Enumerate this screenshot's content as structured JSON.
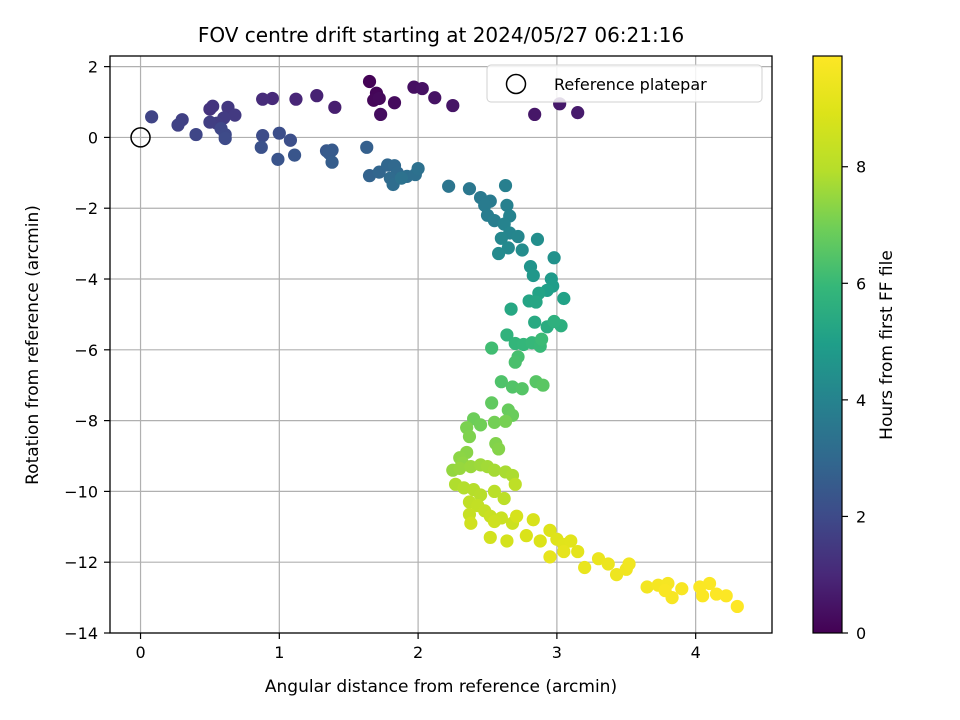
{
  "chart_data": {
    "type": "scatter",
    "title": "FOV centre drift starting at 2024/05/27 06:21:16",
    "xlabel": "Angular distance from reference (arcmin)",
    "ylabel": "Rotation from reference (arcmin)",
    "xlim": [
      -0.22,
      4.55
    ],
    "ylim": [
      -14,
      2.3
    ],
    "x_ticks": [
      0,
      1,
      2,
      3,
      4
    ],
    "x_tick_labels": [
      "0",
      "1",
      "2",
      "3",
      "4"
    ],
    "y_ticks": [
      2,
      0,
      -2,
      -4,
      -6,
      -8,
      -10,
      -12,
      -14
    ],
    "y_tick_labels": [
      "2",
      "0",
      "−2",
      "−4",
      "−6",
      "−8",
      "−10",
      "−12",
      "−14"
    ],
    "grid": true,
    "legend": {
      "placement": "top-right",
      "entries": [
        {
          "label": "Reference platepar",
          "marker": "open-circle"
        }
      ]
    },
    "reference_point": {
      "x": 0,
      "y": 0
    },
    "colorbar": {
      "label": "Hours from first FF file",
      "colormap": "viridis",
      "range": [
        0,
        9.9
      ],
      "ticks": [
        0,
        2,
        4,
        6,
        8
      ],
      "tick_labels": [
        "0",
        "2",
        "4",
        "6",
        "8"
      ]
    },
    "points": [
      {
        "x": 1.65,
        "y": 1.58,
        "h": 0.05
      },
      {
        "x": 1.7,
        "y": 1.25,
        "h": 0.1
      },
      {
        "x": 1.68,
        "y": 1.05,
        "h": 0.15
      },
      {
        "x": 1.72,
        "y": 1.1,
        "h": 0.2
      },
      {
        "x": 1.83,
        "y": 0.98,
        "h": 0.25
      },
      {
        "x": 1.73,
        "y": 0.65,
        "h": 0.3
      },
      {
        "x": 1.97,
        "y": 1.42,
        "h": 0.35
      },
      {
        "x": 2.03,
        "y": 1.38,
        "h": 0.4
      },
      {
        "x": 2.12,
        "y": 1.12,
        "h": 0.45
      },
      {
        "x": 2.25,
        "y": 0.9,
        "h": 0.5
      },
      {
        "x": 2.84,
        "y": 0.65,
        "h": 0.55
      },
      {
        "x": 3.02,
        "y": 0.95,
        "h": 0.6
      },
      {
        "x": 3.15,
        "y": 0.7,
        "h": 0.65
      },
      {
        "x": 1.4,
        "y": 0.85,
        "h": 0.75
      },
      {
        "x": 1.27,
        "y": 1.18,
        "h": 0.85
      },
      {
        "x": 1.12,
        "y": 1.08,
        "h": 0.95
      },
      {
        "x": 0.95,
        "y": 1.1,
        "h": 1.05
      },
      {
        "x": 0.88,
        "y": 1.08,
        "h": 1.1
      },
      {
        "x": 0.5,
        "y": 0.8,
        "h": 1.3
      },
      {
        "x": 0.52,
        "y": 0.88,
        "h": 1.35
      },
      {
        "x": 0.63,
        "y": 0.85,
        "h": 1.45
      },
      {
        "x": 0.68,
        "y": 0.63,
        "h": 1.5
      },
      {
        "x": 0.6,
        "y": 0.55,
        "h": 1.55
      },
      {
        "x": 0.55,
        "y": 0.4,
        "h": 1.6
      },
      {
        "x": 0.5,
        "y": 0.43,
        "h": 1.65
      },
      {
        "x": 0.3,
        "y": 0.5,
        "h": 1.7
      },
      {
        "x": 0.27,
        "y": 0.35,
        "h": 1.75
      },
      {
        "x": 0.08,
        "y": 0.58,
        "h": 1.8
      },
      {
        "x": 0.4,
        "y": 0.08,
        "h": 1.85
      },
      {
        "x": 0.58,
        "y": 0.25,
        "h": 1.9
      },
      {
        "x": 0.61,
        "y": 0.08,
        "h": 1.95
      },
      {
        "x": 0.61,
        "y": -0.03,
        "h": 2.0
      },
      {
        "x": 0.88,
        "y": 0.05,
        "h": 2.05
      },
      {
        "x": 1.0,
        "y": 0.12,
        "h": 2.1
      },
      {
        "x": 1.08,
        "y": -0.08,
        "h": 2.15
      },
      {
        "x": 0.87,
        "y": -0.28,
        "h": 2.2
      },
      {
        "x": 0.99,
        "y": -0.62,
        "h": 2.3
      },
      {
        "x": 1.11,
        "y": -0.5,
        "h": 2.35
      },
      {
        "x": 1.34,
        "y": -0.38,
        "h": 2.45
      },
      {
        "x": 1.38,
        "y": -0.36,
        "h": 2.5
      },
      {
        "x": 1.36,
        "y": -0.45,
        "h": 2.55
      },
      {
        "x": 1.38,
        "y": -0.7,
        "h": 2.6
      },
      {
        "x": 1.63,
        "y": -0.28,
        "h": 2.7
      },
      {
        "x": 1.65,
        "y": -1.08,
        "h": 2.8
      },
      {
        "x": 1.72,
        "y": -0.98,
        "h": 2.9
      },
      {
        "x": 1.78,
        "y": -0.78,
        "h": 2.95
      },
      {
        "x": 1.83,
        "y": -0.8,
        "h": 3.0
      },
      {
        "x": 1.85,
        "y": -1.0,
        "h": 3.05
      },
      {
        "x": 1.8,
        "y": -1.15,
        "h": 3.1
      },
      {
        "x": 1.82,
        "y": -1.33,
        "h": 3.15
      },
      {
        "x": 1.92,
        "y": -1.1,
        "h": 3.2
      },
      {
        "x": 1.98,
        "y": -1.05,
        "h": 3.25
      },
      {
        "x": 2.0,
        "y": -0.88,
        "h": 3.3
      },
      {
        "x": 1.88,
        "y": -1.15,
        "h": 3.35
      },
      {
        "x": 2.22,
        "y": -1.38,
        "h": 3.45
      },
      {
        "x": 2.37,
        "y": -1.45,
        "h": 3.55
      },
      {
        "x": 2.45,
        "y": -1.7,
        "h": 3.6
      },
      {
        "x": 2.52,
        "y": -1.8,
        "h": 3.65
      },
      {
        "x": 2.48,
        "y": -1.92,
        "h": 3.7
      },
      {
        "x": 2.5,
        "y": -2.2,
        "h": 3.75
      },
      {
        "x": 2.55,
        "y": -2.35,
        "h": 3.8
      },
      {
        "x": 2.63,
        "y": -1.36,
        "h": 3.85
      },
      {
        "x": 2.64,
        "y": -1.92,
        "h": 3.9
      },
      {
        "x": 2.66,
        "y": -2.22,
        "h": 3.95
      },
      {
        "x": 2.62,
        "y": -2.45,
        "h": 4.0
      },
      {
        "x": 2.66,
        "y": -2.7,
        "h": 4.05
      },
      {
        "x": 2.72,
        "y": -2.8,
        "h": 4.1
      },
      {
        "x": 2.6,
        "y": -2.85,
        "h": 4.15
      },
      {
        "x": 2.65,
        "y": -3.12,
        "h": 4.2
      },
      {
        "x": 2.58,
        "y": -3.28,
        "h": 4.25
      },
      {
        "x": 2.75,
        "y": -3.18,
        "h": 4.3
      },
      {
        "x": 2.86,
        "y": -2.88,
        "h": 4.4
      },
      {
        "x": 2.98,
        "y": -3.4,
        "h": 4.5
      },
      {
        "x": 2.81,
        "y": -3.65,
        "h": 4.6
      },
      {
        "x": 2.83,
        "y": -3.9,
        "h": 4.7
      },
      {
        "x": 2.96,
        "y": -4.0,
        "h": 4.8
      },
      {
        "x": 2.97,
        "y": -4.2,
        "h": 4.9
      },
      {
        "x": 2.93,
        "y": -4.32,
        "h": 5.0
      },
      {
        "x": 3.05,
        "y": -4.55,
        "h": 5.1
      },
      {
        "x": 2.87,
        "y": -4.4,
        "h": 5.15
      },
      {
        "x": 2.8,
        "y": -4.62,
        "h": 5.2
      },
      {
        "x": 2.85,
        "y": -4.65,
        "h": 5.25
      },
      {
        "x": 2.67,
        "y": -4.85,
        "h": 5.3
      },
      {
        "x": 2.84,
        "y": -5.22,
        "h": 5.4
      },
      {
        "x": 2.93,
        "y": -5.35,
        "h": 5.5
      },
      {
        "x": 3.03,
        "y": -5.32,
        "h": 5.6
      },
      {
        "x": 2.98,
        "y": -5.2,
        "h": 5.65
      },
      {
        "x": 2.64,
        "y": -5.58,
        "h": 5.75
      },
      {
        "x": 2.7,
        "y": -5.82,
        "h": 5.85
      },
      {
        "x": 2.76,
        "y": -5.85,
        "h": 5.9
      },
      {
        "x": 2.82,
        "y": -5.8,
        "h": 5.95
      },
      {
        "x": 2.88,
        "y": -5.9,
        "h": 6.0
      },
      {
        "x": 2.89,
        "y": -5.7,
        "h": 6.05
      },
      {
        "x": 2.53,
        "y": -5.95,
        "h": 6.15
      },
      {
        "x": 2.72,
        "y": -6.2,
        "h": 6.25
      },
      {
        "x": 2.7,
        "y": -6.35,
        "h": 6.3
      },
      {
        "x": 2.6,
        "y": -6.9,
        "h": 6.4
      },
      {
        "x": 2.68,
        "y": -7.05,
        "h": 6.45
      },
      {
        "x": 2.75,
        "y": -7.1,
        "h": 6.5
      },
      {
        "x": 2.85,
        "y": -6.9,
        "h": 6.55
      },
      {
        "x": 2.9,
        "y": -7.0,
        "h": 6.6
      },
      {
        "x": 2.53,
        "y": -7.5,
        "h": 6.7
      },
      {
        "x": 2.65,
        "y": -7.7,
        "h": 6.8
      },
      {
        "x": 2.68,
        "y": -7.85,
        "h": 6.85
      },
      {
        "x": 2.4,
        "y": -7.95,
        "h": 6.9
      },
      {
        "x": 2.45,
        "y": -8.12,
        "h": 6.95
      },
      {
        "x": 2.55,
        "y": -8.05,
        "h": 7.0
      },
      {
        "x": 2.63,
        "y": -8.02,
        "h": 7.05
      },
      {
        "x": 2.35,
        "y": -8.2,
        "h": 7.1
      },
      {
        "x": 2.37,
        "y": -8.45,
        "h": 7.15
      },
      {
        "x": 2.56,
        "y": -8.65,
        "h": 7.2
      },
      {
        "x": 2.58,
        "y": -8.8,
        "h": 7.25
      },
      {
        "x": 2.35,
        "y": -8.9,
        "h": 7.3
      },
      {
        "x": 2.3,
        "y": -9.05,
        "h": 7.35
      },
      {
        "x": 2.32,
        "y": -9.2,
        "h": 7.4
      },
      {
        "x": 2.25,
        "y": -9.4,
        "h": 7.45
      },
      {
        "x": 2.3,
        "y": -9.35,
        "h": 7.5
      },
      {
        "x": 2.38,
        "y": -9.3,
        "h": 7.55
      },
      {
        "x": 2.45,
        "y": -9.25,
        "h": 7.6
      },
      {
        "x": 2.5,
        "y": -9.3,
        "h": 7.65
      },
      {
        "x": 2.55,
        "y": -9.4,
        "h": 7.7
      },
      {
        "x": 2.63,
        "y": -9.45,
        "h": 7.75
      },
      {
        "x": 2.68,
        "y": -9.55,
        "h": 7.8
      },
      {
        "x": 2.27,
        "y": -9.8,
        "h": 7.85
      },
      {
        "x": 2.33,
        "y": -9.9,
        "h": 7.9
      },
      {
        "x": 2.4,
        "y": -9.95,
        "h": 7.95
      },
      {
        "x": 2.45,
        "y": -10.1,
        "h": 8.0
      },
      {
        "x": 2.55,
        "y": -10.0,
        "h": 8.05
      },
      {
        "x": 2.62,
        "y": -10.2,
        "h": 8.1
      },
      {
        "x": 2.7,
        "y": -9.8,
        "h": 8.15
      },
      {
        "x": 2.37,
        "y": -10.3,
        "h": 8.2
      },
      {
        "x": 2.43,
        "y": -10.4,
        "h": 8.25
      },
      {
        "x": 2.48,
        "y": -10.55,
        "h": 8.3
      },
      {
        "x": 2.37,
        "y": -10.65,
        "h": 8.35
      },
      {
        "x": 2.52,
        "y": -10.7,
        "h": 8.4
      },
      {
        "x": 2.6,
        "y": -10.75,
        "h": 8.45
      },
      {
        "x": 2.68,
        "y": -10.9,
        "h": 8.5
      },
      {
        "x": 2.55,
        "y": -10.85,
        "h": 8.55
      },
      {
        "x": 2.38,
        "y": -10.9,
        "h": 8.6
      },
      {
        "x": 2.52,
        "y": -11.3,
        "h": 8.65
      },
      {
        "x": 2.64,
        "y": -11.4,
        "h": 8.7
      },
      {
        "x": 2.71,
        "y": -10.7,
        "h": 8.75
      },
      {
        "x": 2.83,
        "y": -10.8,
        "h": 8.8
      },
      {
        "x": 2.78,
        "y": -11.25,
        "h": 8.85
      },
      {
        "x": 2.88,
        "y": -11.4,
        "h": 8.9
      },
      {
        "x": 2.95,
        "y": -11.1,
        "h": 8.95
      },
      {
        "x": 3.0,
        "y": -11.35,
        "h": 9.0
      },
      {
        "x": 3.05,
        "y": -11.5,
        "h": 9.05
      },
      {
        "x": 3.1,
        "y": -11.4,
        "h": 9.1
      },
      {
        "x": 3.15,
        "y": -11.7,
        "h": 9.15
      },
      {
        "x": 3.05,
        "y": -11.7,
        "h": 9.2
      },
      {
        "x": 2.95,
        "y": -11.85,
        "h": 9.25
      },
      {
        "x": 3.2,
        "y": -12.15,
        "h": 9.3
      },
      {
        "x": 3.3,
        "y": -11.9,
        "h": 9.35
      },
      {
        "x": 3.37,
        "y": -12.05,
        "h": 9.4
      },
      {
        "x": 3.43,
        "y": -12.35,
        "h": 9.45
      },
      {
        "x": 3.5,
        "y": -12.2,
        "h": 9.5
      },
      {
        "x": 3.52,
        "y": -12.05,
        "h": 9.55
      },
      {
        "x": 3.65,
        "y": -12.7,
        "h": 9.6
      },
      {
        "x": 3.73,
        "y": -12.65,
        "h": 9.65
      },
      {
        "x": 3.8,
        "y": -12.6,
        "h": 9.7
      },
      {
        "x": 3.83,
        "y": -13.0,
        "h": 9.72
      },
      {
        "x": 3.9,
        "y": -12.75,
        "h": 9.75
      },
      {
        "x": 3.78,
        "y": -12.8,
        "h": 9.77
      },
      {
        "x": 4.03,
        "y": -12.7,
        "h": 9.8
      },
      {
        "x": 4.1,
        "y": -12.6,
        "h": 9.82
      },
      {
        "x": 4.05,
        "y": -12.95,
        "h": 9.84
      },
      {
        "x": 4.15,
        "y": -12.9,
        "h": 9.86
      },
      {
        "x": 4.22,
        "y": -12.95,
        "h": 9.88
      },
      {
        "x": 4.3,
        "y": -13.25,
        "h": 9.9
      }
    ]
  }
}
